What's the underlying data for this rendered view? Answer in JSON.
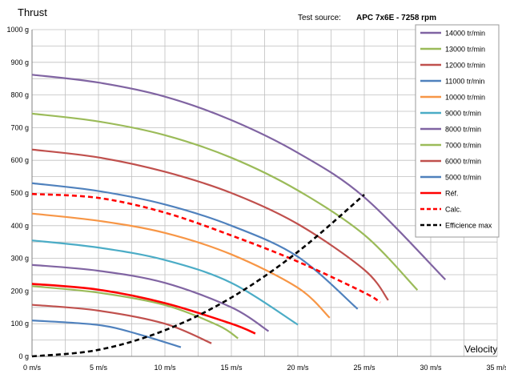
{
  "header": {
    "source_label": "Test source:",
    "source_value": "APC 7x6E - 7258 rpm"
  },
  "chart_data": {
    "type": "line",
    "ylabel": "Thrust",
    "xlabel": "Velocity",
    "xlim": [
      0,
      35
    ],
    "ylim": [
      0,
      1000
    ],
    "x_ticks": [
      "0 m/s",
      "5 m/s",
      "10 m/s",
      "15 m/s",
      "20 m/s",
      "25 m/s",
      "30 m/s",
      "35 m/s"
    ],
    "y_ticks": [
      "0 g",
      "100 g",
      "200 g",
      "300 g",
      "400 g",
      "500 g",
      "600 g",
      "700 g",
      "800 g",
      "900 g",
      "1000 g"
    ],
    "grid": true,
    "legend_position": "right",
    "series": [
      {
        "name": "14000 tr/min",
        "color": "#8064a2",
        "dash": "solid",
        "x": [
          0,
          5,
          10,
          15,
          20,
          25,
          31.1
        ],
        "y": [
          862,
          838,
          795,
          723,
          623,
          487,
          235
        ]
      },
      {
        "name": "13000 tr/min",
        "color": "#9bbb59",
        "dash": "solid",
        "x": [
          0,
          5,
          10,
          15,
          20,
          25,
          29
        ],
        "y": [
          743,
          719,
          677,
          608,
          508,
          372,
          203
        ]
      },
      {
        "name": "12000 tr/min",
        "color": "#c0504d",
        "dash": "solid",
        "x": [
          0,
          5,
          10,
          15,
          20,
          25,
          26.8
        ],
        "y": [
          633,
          609,
          565,
          500,
          405,
          265,
          172
        ]
      },
      {
        "name": "11000 tr/min",
        "color": "#4f81bd",
        "dash": "solid",
        "x": [
          0,
          5,
          10,
          15,
          20,
          24.5
        ],
        "y": [
          530,
          506,
          465,
          400,
          305,
          145
        ]
      },
      {
        "name": "10000 tr/min",
        "color": "#f79646",
        "dash": "solid",
        "x": [
          0,
          5,
          10,
          15,
          20,
          22.4
        ],
        "y": [
          437,
          415,
          378,
          312,
          210,
          118
        ]
      },
      {
        "name": "9000 tr/min",
        "color": "#4bacc6",
        "dash": "solid",
        "x": [
          0,
          5,
          10,
          15,
          20
        ],
        "y": [
          355,
          333,
          295,
          225,
          97
        ]
      },
      {
        "name": "8000 tr/min",
        "color": "#8064a2",
        "dash": "solid",
        "x": [
          0,
          5,
          10,
          15,
          17.8
        ],
        "y": [
          280,
          262,
          225,
          150,
          77
        ]
      },
      {
        "name": "7000 tr/min",
        "color": "#9bbb59",
        "dash": "solid",
        "x": [
          0,
          5,
          10,
          14,
          15.5
        ],
        "y": [
          215,
          195,
          157,
          95,
          55
        ]
      },
      {
        "name": "6000 tr/min",
        "color": "#c0504d",
        "dash": "solid",
        "x": [
          0,
          5,
          10,
          13.5
        ],
        "y": [
          158,
          140,
          100,
          40
        ]
      },
      {
        "name": "5000 tr/min",
        "color": "#4f81bd",
        "dash": "solid",
        "x": [
          0,
          5,
          8,
          11.2
        ],
        "y": [
          110,
          96,
          68,
          28
        ]
      },
      {
        "name": "Réf.",
        "color": "#ff0000",
        "dash": "solid",
        "x": [
          0,
          5,
          10,
          15,
          16.8
        ],
        "y": [
          222,
          204,
          163,
          100,
          70
        ]
      },
      {
        "name": "Calc.",
        "color": "#ff0000",
        "dash": "dashed",
        "x": [
          0,
          5,
          10,
          15,
          20,
          25,
          26.2
        ],
        "y": [
          497,
          485,
          440,
          370,
          290,
          195,
          165
        ]
      },
      {
        "name": "Efficience max",
        "color": "#000000",
        "dash": "dashed",
        "x": [
          0,
          5,
          10,
          15,
          20,
          25
        ],
        "y": [
          0,
          20,
          80,
          180,
          320,
          495
        ]
      }
    ]
  }
}
